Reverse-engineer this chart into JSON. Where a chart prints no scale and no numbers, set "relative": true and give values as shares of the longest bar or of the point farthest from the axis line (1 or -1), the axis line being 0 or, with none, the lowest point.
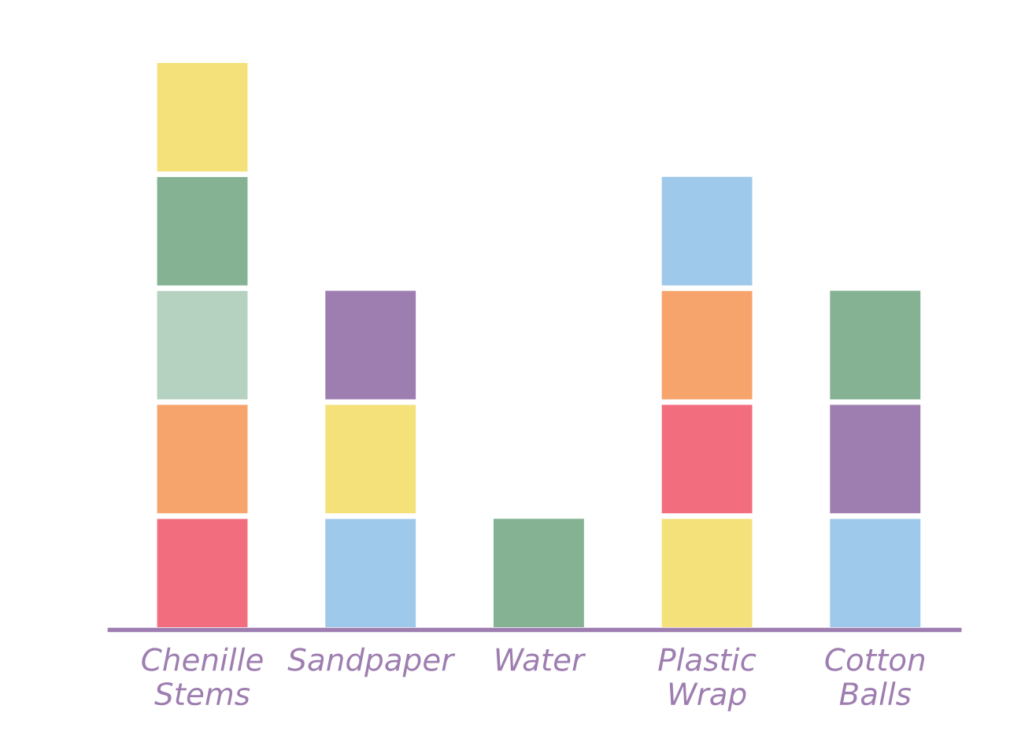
{
  "chart_data": {
    "type": "bar",
    "stacked": true,
    "relative": true,
    "categories": [
      "Chenille\nStems",
      "Sandpaper",
      "Water",
      "Plastic\nWrap",
      "Cotton\nBalls"
    ],
    "series": [
      {
        "values": [
          0.2,
          0.2,
          0.2,
          0.2,
          0.2
        ],
        "colors": [
          "#f26d7d",
          "#9fc9ea",
          "#84b293",
          "#f5e17a",
          "#9fc9ea"
        ]
      },
      {
        "values": [
          0.2,
          0.2,
          null,
          0.2,
          0.2
        ],
        "colors": [
          "#f7a46c",
          "#f5e17a",
          null,
          "#f26d7d",
          "#9e7eb0"
        ]
      },
      {
        "values": [
          0.2,
          0.2,
          null,
          0.2,
          0.2
        ],
        "colors": [
          "#b5d1bf",
          "#9e7eb0",
          null,
          "#f7a46c",
          "#84b293"
        ]
      },
      {
        "values": [
          0.2,
          null,
          null,
          0.2,
          null
        ],
        "colors": [
          "#84b293",
          null,
          null,
          "#9fc9ea",
          null
        ]
      },
      {
        "values": [
          0.2,
          null,
          null,
          null,
          null
        ],
        "colors": [
          "#f5e17a",
          null,
          null,
          null,
          null
        ]
      }
    ],
    "grid": false,
    "legend": false
  }
}
